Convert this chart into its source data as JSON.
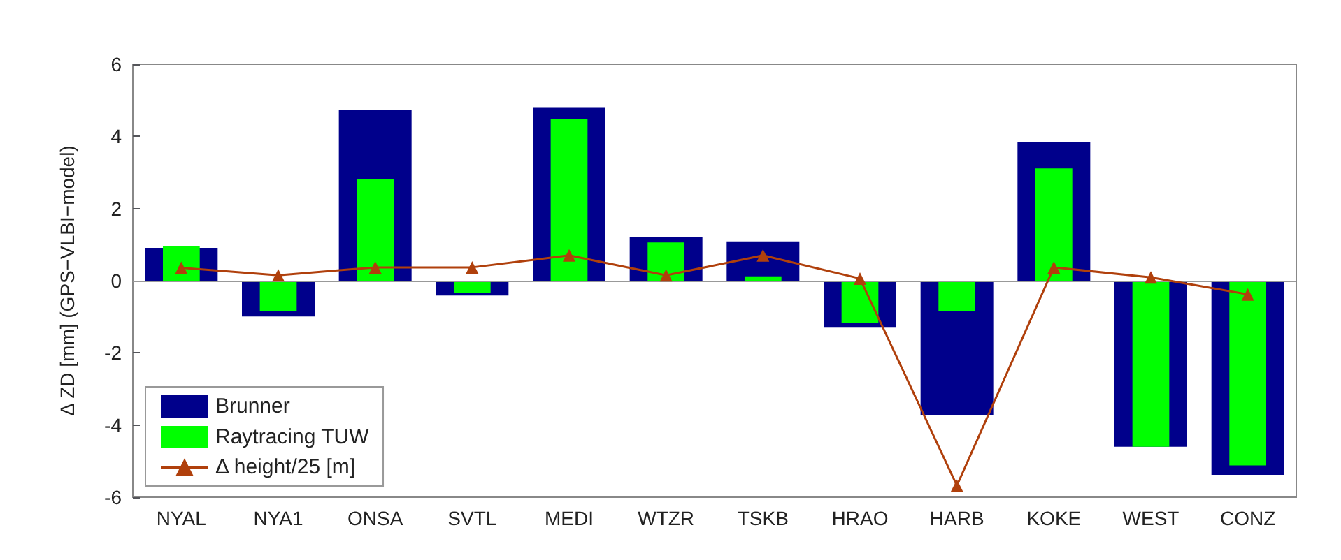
{
  "chart_data": {
    "type": "bar",
    "ylabel": "Δ ZD [mm] (GPS−VLBI−model)",
    "categories": [
      "NYAL",
      "NYA1",
      "ONSA",
      "SVTL",
      "MEDI",
      "WTZR",
      "TSKB",
      "HRAO",
      "HARB",
      "KOKE",
      "WEST",
      "CONZ"
    ],
    "series": [
      {
        "name": "Brunner",
        "color": "#00008b",
        "values": [
          0.91,
          -0.99,
          4.74,
          -0.41,
          4.81,
          1.21,
          1.09,
          -1.3,
          -3.73,
          3.83,
          -4.6,
          -5.38
        ]
      },
      {
        "name": "Raytracing TUW",
        "color": "#00ff00",
        "values": [
          0.96,
          -0.84,
          2.81,
          -0.35,
          4.49,
          1.06,
          0.12,
          -1.17,
          -0.85,
          3.11,
          -4.6,
          -5.12
        ]
      },
      {
        "name": "Δ height/25 [m]",
        "type": "line",
        "color": "#b0400c",
        "marker": "triangle",
        "values": [
          0.36,
          0.15,
          0.37,
          0.37,
          0.7,
          0.15,
          0.7,
          0.06,
          -5.68,
          0.37,
          0.09,
          -0.38
        ]
      }
    ],
    "ylim": [
      -6,
      6
    ],
    "yticks": [
      -6,
      -4,
      -2,
      0,
      2,
      4,
      6
    ],
    "grid": false,
    "ref_lines": [
      {
        "axis": "y",
        "value": 0,
        "color": "#999999"
      }
    ],
    "legend": "bottom left"
  }
}
